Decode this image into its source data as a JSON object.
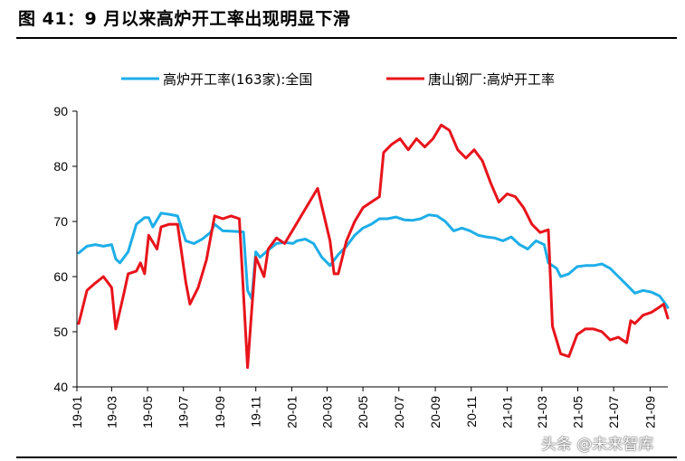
{
  "title": "图 41：9 月以来高炉开工率出现明显下滑",
  "watermark": "头条 @未来智库",
  "chart_data": {
    "type": "line",
    "ylim": [
      40,
      90
    ],
    "yticks": [
      40,
      50,
      60,
      70,
      80,
      90
    ],
    "x_range": [
      "2019-01",
      "2021-10"
    ],
    "xticks": [
      "19-01",
      "19-03",
      "19-05",
      "19-07",
      "19-09",
      "19-11",
      "20-01",
      "20-03",
      "20-05",
      "20-07",
      "20-09",
      "20-11",
      "21-01",
      "21-03",
      "21-05",
      "21-07",
      "21-09"
    ],
    "legend_position": "top",
    "grid": false,
    "series": [
      {
        "name": "高炉开工率(163家):全国",
        "color": "#1EAEE8",
        "points": [
          [
            "2019-01-04",
            64.3
          ],
          [
            "2019-01-18",
            65.5
          ],
          [
            "2019-02-01",
            65.8
          ],
          [
            "2019-02-15",
            65.5
          ],
          [
            "2019-03-01",
            65.8
          ],
          [
            "2019-03-08",
            63.2
          ],
          [
            "2019-03-15",
            62.5
          ],
          [
            "2019-03-29",
            64.5
          ],
          [
            "2019-04-12",
            69.5
          ],
          [
            "2019-04-26",
            70.7
          ],
          [
            "2019-05-03",
            70.7
          ],
          [
            "2019-05-10",
            69.0
          ],
          [
            "2019-05-24",
            71.5
          ],
          [
            "2019-06-07",
            71.3
          ],
          [
            "2019-06-21",
            71.0
          ],
          [
            "2019-07-05",
            66.5
          ],
          [
            "2019-07-19",
            66.0
          ],
          [
            "2019-08-02",
            66.8
          ],
          [
            "2019-08-16",
            68.0
          ],
          [
            "2019-08-23",
            69.5
          ],
          [
            "2019-09-06",
            68.3
          ],
          [
            "2019-09-27",
            68.2
          ],
          [
            "2019-10-11",
            68.1
          ],
          [
            "2019-10-18",
            57.5
          ],
          [
            "2019-10-25",
            56.0
          ],
          [
            "2019-11-01",
            64.5
          ],
          [
            "2019-11-08",
            63.5
          ],
          [
            "2019-11-22",
            64.8
          ],
          [
            "2019-12-06",
            66.0
          ],
          [
            "2019-12-20",
            66.2
          ],
          [
            "2020-01-03",
            66.0
          ],
          [
            "2020-01-10",
            66.5
          ],
          [
            "2020-01-24",
            66.8
          ],
          [
            "2020-02-07",
            66.0
          ],
          [
            "2020-02-21",
            63.5
          ],
          [
            "2020-03-06",
            62.0
          ],
          [
            "2020-03-20",
            64.0
          ],
          [
            "2020-04-03",
            65.5
          ],
          [
            "2020-04-17",
            67.5
          ],
          [
            "2020-05-01",
            68.8
          ],
          [
            "2020-05-15",
            69.5
          ],
          [
            "2020-05-29",
            70.5
          ],
          [
            "2020-06-12",
            70.5
          ],
          [
            "2020-06-26",
            70.8
          ],
          [
            "2020-07-10",
            70.3
          ],
          [
            "2020-07-24",
            70.2
          ],
          [
            "2020-08-07",
            70.5
          ],
          [
            "2020-08-21",
            71.2
          ],
          [
            "2020-09-04",
            71.0
          ],
          [
            "2020-09-18",
            70.0
          ],
          [
            "2020-10-02",
            68.3
          ],
          [
            "2020-10-16",
            68.8
          ],
          [
            "2020-10-30",
            68.3
          ],
          [
            "2020-11-13",
            67.5
          ],
          [
            "2020-11-27",
            67.2
          ],
          [
            "2020-12-11",
            67.0
          ],
          [
            "2020-12-25",
            66.5
          ],
          [
            "2021-01-08",
            67.2
          ],
          [
            "2021-01-22",
            65.8
          ],
          [
            "2021-02-05",
            65.0
          ],
          [
            "2021-02-19",
            66.5
          ],
          [
            "2021-03-05",
            65.8
          ],
          [
            "2021-03-12",
            62.5
          ],
          [
            "2021-03-26",
            61.5
          ],
          [
            "2021-04-02",
            60.0
          ],
          [
            "2021-04-16",
            60.5
          ],
          [
            "2021-04-30",
            61.8
          ],
          [
            "2021-05-14",
            62.0
          ],
          [
            "2021-05-28",
            62.0
          ],
          [
            "2021-06-11",
            62.3
          ],
          [
            "2021-06-25",
            61.5
          ],
          [
            "2021-07-09",
            60.0
          ],
          [
            "2021-07-23",
            58.5
          ],
          [
            "2021-08-06",
            57.0
          ],
          [
            "2021-08-20",
            57.5
          ],
          [
            "2021-09-03",
            57.2
          ],
          [
            "2021-09-17",
            56.5
          ],
          [
            "2021-09-24",
            55.5
          ],
          [
            "2021-10-01",
            54.4
          ]
        ]
      },
      {
        "name": "唐山钢厂:高炉开工率",
        "color": "#E8141B",
        "points": [
          [
            "2019-01-04",
            51.5
          ],
          [
            "2019-01-18",
            57.5
          ],
          [
            "2019-02-01",
            58.8
          ],
          [
            "2019-02-15",
            60.0
          ],
          [
            "2019-03-01",
            58.0
          ],
          [
            "2019-03-08",
            50.5
          ],
          [
            "2019-03-22",
            57.0
          ],
          [
            "2019-03-29",
            60.5
          ],
          [
            "2019-04-12",
            61.0
          ],
          [
            "2019-04-19",
            62.5
          ],
          [
            "2019-04-26",
            60.5
          ],
          [
            "2019-05-03",
            67.5
          ],
          [
            "2019-05-17",
            65.0
          ],
          [
            "2019-05-24",
            69.0
          ],
          [
            "2019-06-07",
            69.5
          ],
          [
            "2019-06-21",
            69.5
          ],
          [
            "2019-07-05",
            59.0
          ],
          [
            "2019-07-12",
            55.0
          ],
          [
            "2019-07-26",
            58.0
          ],
          [
            "2019-08-09",
            63.0
          ],
          [
            "2019-08-23",
            71.0
          ],
          [
            "2019-09-06",
            70.5
          ],
          [
            "2019-09-20",
            71.0
          ],
          [
            "2019-10-04",
            70.5
          ],
          [
            "2019-10-18",
            43.5
          ],
          [
            "2019-10-25",
            54.0
          ],
          [
            "2019-11-01",
            63.5
          ],
          [
            "2019-11-15",
            60.0
          ],
          [
            "2019-11-22",
            65.0
          ],
          [
            "2019-12-06",
            67.0
          ],
          [
            "2019-12-20",
            66.0
          ],
          [
            "2020-01-03",
            68.5
          ],
          [
            "2020-01-17",
            71.0
          ],
          [
            "2020-01-31",
            73.5
          ],
          [
            "2020-02-14",
            76.0
          ],
          [
            "2020-03-06",
            66.5
          ],
          [
            "2020-03-13",
            60.5
          ],
          [
            "2020-03-20",
            60.5
          ],
          [
            "2020-04-03",
            66.5
          ],
          [
            "2020-04-17",
            70.0
          ],
          [
            "2020-05-01",
            72.5
          ],
          [
            "2020-05-15",
            73.5
          ],
          [
            "2020-05-29",
            74.5
          ],
          [
            "2020-06-05",
            82.5
          ],
          [
            "2020-06-19",
            84.0
          ],
          [
            "2020-07-03",
            85.0
          ],
          [
            "2020-07-17",
            83.0
          ],
          [
            "2020-07-31",
            85.0
          ],
          [
            "2020-08-14",
            83.5
          ],
          [
            "2020-08-28",
            85.0
          ],
          [
            "2020-09-11",
            87.5
          ],
          [
            "2020-09-25",
            86.5
          ],
          [
            "2020-10-09",
            83.0
          ],
          [
            "2020-10-23",
            81.5
          ],
          [
            "2020-11-06",
            83.0
          ],
          [
            "2020-11-20",
            81.0
          ],
          [
            "2020-12-04",
            77.0
          ],
          [
            "2020-12-18",
            73.5
          ],
          [
            "2021-01-01",
            75.0
          ],
          [
            "2021-01-15",
            74.5
          ],
          [
            "2021-01-29",
            72.5
          ],
          [
            "2021-02-12",
            69.5
          ],
          [
            "2021-02-26",
            68.0
          ],
          [
            "2021-03-12",
            68.5
          ],
          [
            "2021-03-19",
            51.0
          ],
          [
            "2021-04-02",
            46.0
          ],
          [
            "2021-04-16",
            45.5
          ],
          [
            "2021-04-30",
            49.5
          ],
          [
            "2021-05-14",
            50.5
          ],
          [
            "2021-05-28",
            50.5
          ],
          [
            "2021-06-11",
            50.0
          ],
          [
            "2021-06-25",
            48.5
          ],
          [
            "2021-07-09",
            49.0
          ],
          [
            "2021-07-23",
            48.0
          ],
          [
            "2021-07-30",
            52.0
          ],
          [
            "2021-08-06",
            51.5
          ],
          [
            "2021-08-20",
            53.0
          ],
          [
            "2021-09-03",
            53.5
          ],
          [
            "2021-09-17",
            54.5
          ],
          [
            "2021-09-24",
            55.0
          ],
          [
            "2021-10-01",
            52.5
          ]
        ]
      }
    ]
  }
}
